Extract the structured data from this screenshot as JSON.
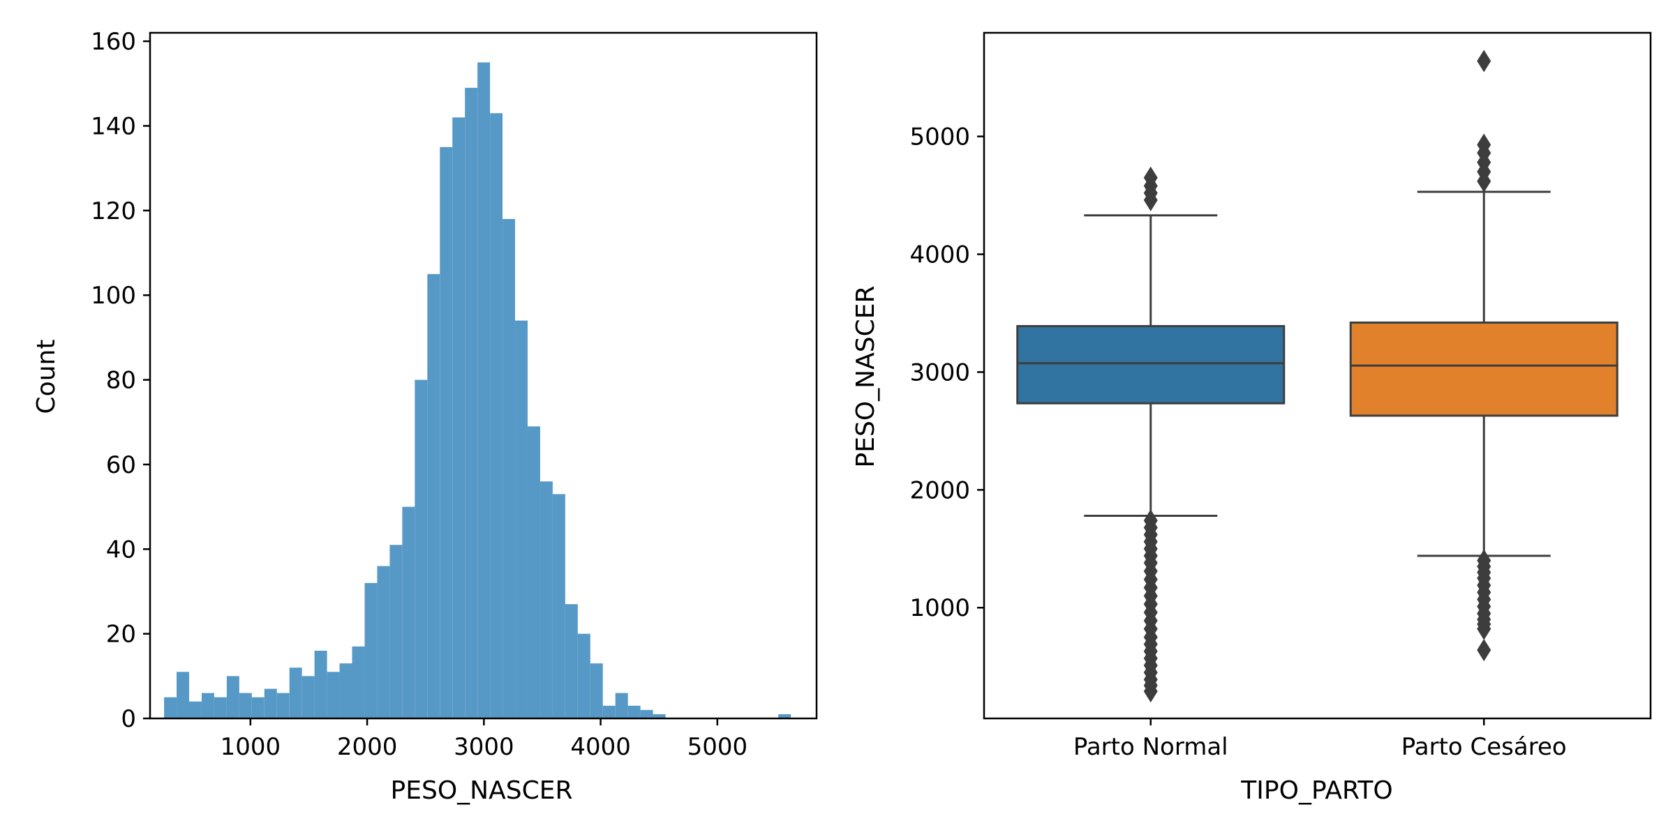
{
  "chart_data": [
    {
      "type": "histogram",
      "xlabel": "PESO_NASCER",
      "ylabel": "Count",
      "xlim": [
        140,
        5850
      ],
      "ylim": [
        0,
        162
      ],
      "x_ticks": [
        1000,
        2000,
        3000,
        4000,
        5000
      ],
      "y_ticks": [
        0,
        20,
        40,
        60,
        80,
        100,
        120,
        140,
        160
      ],
      "bar_color": "#5799c6",
      "bin_start": 260,
      "bin_width": 107.4,
      "counts": [
        5,
        11,
        4,
        6,
        5,
        10,
        6,
        5,
        7,
        6,
        12,
        10,
        16,
        11,
        13,
        17,
        32,
        36,
        41,
        50,
        80,
        105,
        135,
        142,
        149,
        155,
        143,
        118,
        94,
        69,
        56,
        53,
        27,
        20,
        13,
        3,
        6,
        3,
        2,
        1,
        0,
        0,
        0,
        0,
        0,
        0,
        0,
        0,
        0,
        1
      ],
      "grid": false
    },
    {
      "type": "boxplot",
      "xlabel": "TIPO_PARTO",
      "ylabel": "PESO_NASCER",
      "ylim": [
        60,
        5880
      ],
      "y_ticks": [
        1000,
        2000,
        3000,
        4000,
        5000
      ],
      "categories": [
        "Parto Normal",
        "Parto Cesáreo"
      ],
      "boxes": [
        {
          "category": "Parto Normal",
          "color": "#3274a1",
          "whisker_low": 1780,
          "q1": 2735,
          "median": 3075,
          "q3": 3390,
          "whisker_high": 4330,
          "outliers": [
            4460,
            4520,
            4580,
            4650,
            1740,
            1680,
            1620,
            1560,
            1500,
            1440,
            1380,
            1310,
            1240,
            1170,
            1100,
            1030,
            960,
            890,
            820,
            750,
            690,
            630,
            570,
            510,
            450,
            390,
            340,
            290
          ]
        },
        {
          "category": "Parto Cesáreo",
          "color": "#e1812c",
          "whisker_low": 1440,
          "q1": 2630,
          "median": 3055,
          "q3": 3420,
          "whisker_high": 4530,
          "outliers": [
            4620,
            4700,
            4780,
            4860,
            4930,
            5640,
            1400,
            1350,
            1300,
            1250,
            1190,
            1130,
            1070,
            1010,
            950,
            900,
            860,
            820,
            640
          ]
        }
      ],
      "grid": false
    }
  ]
}
